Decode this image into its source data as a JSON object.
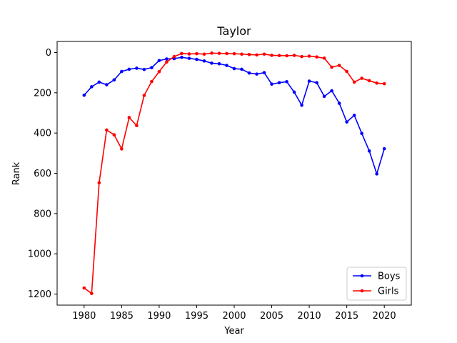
{
  "chart_data": {
    "type": "line",
    "title": "Taylor",
    "xlabel": "Year",
    "ylabel": "Rank",
    "xlim": [
      1976.4,
      2023.6
    ],
    "ylim": [
      1255,
      -55
    ],
    "y_inverted": true,
    "xticks": [
      1980,
      1985,
      1990,
      1995,
      2000,
      2005,
      2010,
      2015,
      2020
    ],
    "yticks": [
      0,
      200,
      400,
      600,
      800,
      1000,
      1200
    ],
    "grid": false,
    "legend_position": "bottom-right",
    "x": [
      1980,
      1981,
      1982,
      1983,
      1984,
      1985,
      1986,
      1987,
      1988,
      1989,
      1990,
      1991,
      1992,
      1993,
      1994,
      1995,
      1996,
      1997,
      1998,
      1999,
      2000,
      2001,
      2002,
      2003,
      2004,
      2005,
      2006,
      2007,
      2008,
      2009,
      2010,
      2011,
      2012,
      2013,
      2014,
      2015,
      2016,
      2017,
      2018,
      2019,
      2020
    ],
    "series": [
      {
        "name": "Boys",
        "color": "#0000ff",
        "values": [
          212,
          170,
          147,
          160,
          136,
          94,
          83,
          78,
          84,
          75,
          40,
          32,
          30,
          24,
          29,
          34,
          42,
          53,
          56,
          64,
          80,
          83,
          102,
          107,
          100,
          157,
          150,
          145,
          197,
          262,
          142,
          150,
          218,
          190,
          252,
          345,
          312,
          402,
          489,
          603,
          478
        ]
      },
      {
        "name": "Girls",
        "color": "#ff0000",
        "values": [
          1170,
          1197,
          647,
          385,
          409,
          479,
          323,
          363,
          213,
          144,
          95,
          47,
          20,
          5,
          7,
          6,
          8,
          3,
          4,
          5,
          6,
          8,
          10,
          12,
          8,
          14,
          15,
          16,
          14,
          20,
          18,
          22,
          28,
          73,
          64,
          94,
          147,
          128,
          140,
          152,
          155
        ]
      }
    ]
  }
}
